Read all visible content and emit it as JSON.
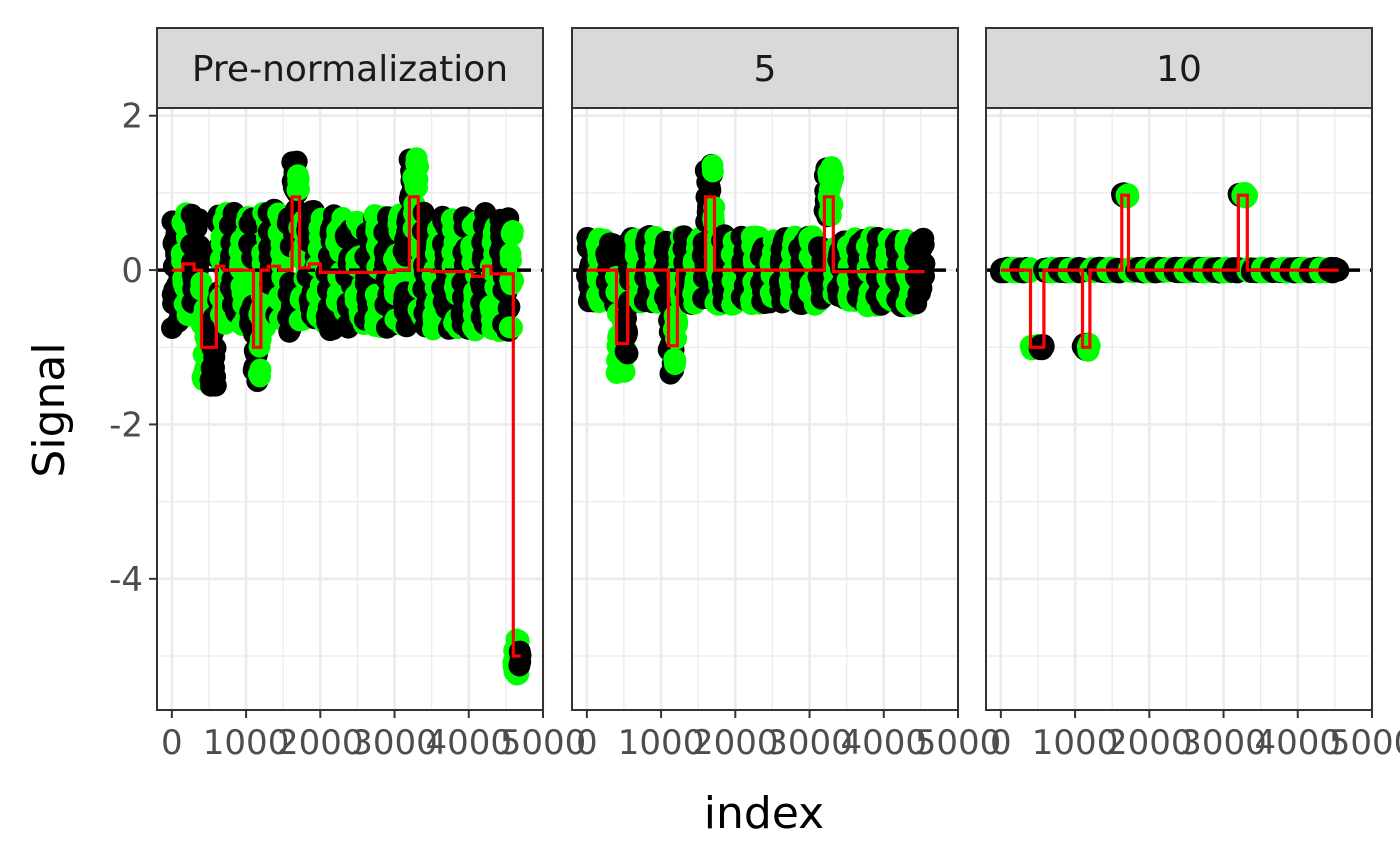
{
  "chart_data": {
    "type": "scatter",
    "title": "",
    "xlabel": "index",
    "ylabel": "Signal",
    "facet_order": [
      "Pre-normalization",
      "5",
      "10"
    ],
    "xlim": [
      -200,
      5000
    ],
    "ylim": [
      -5.7,
      2.1
    ],
    "x_ticks": [
      0,
      1000,
      2000,
      3000,
      4000,
      5000
    ],
    "x_tick_labels": [
      "0",
      "1000",
      "2000",
      "3000",
      "4000",
      "5000"
    ],
    "y_ticks": [
      -4,
      -2,
      0,
      2
    ],
    "y_tick_labels": [
      "-4",
      "-2",
      "0",
      "2"
    ],
    "reference_line": {
      "y": 0,
      "style": "dashed",
      "color": "#000000"
    },
    "point_colors": [
      "#000000",
      "#00ff00"
    ],
    "segment_color": "#ff0000",
    "grid": true,
    "legend": "none",
    "panels": [
      {
        "label": "Pre-normalization",
        "x_max": 4700,
        "segments": [
          {
            "start": 0,
            "end": 150,
            "value": 0.0,
            "spread": 0.75
          },
          {
            "start": 150,
            "end": 300,
            "value": 0.08,
            "spread": 0.75
          },
          {
            "start": 300,
            "end": 400,
            "value": 0.0,
            "spread": 0.75
          },
          {
            "start": 400,
            "end": 600,
            "value": -1.0,
            "spread": 0.5
          },
          {
            "start": 600,
            "end": 700,
            "value": 0.05,
            "spread": 0.7
          },
          {
            "start": 700,
            "end": 1100,
            "value": 0.0,
            "spread": 0.75
          },
          {
            "start": 1100,
            "end": 1200,
            "value": -1.0,
            "spread": 0.5
          },
          {
            "start": 1200,
            "end": 1300,
            "value": 0.0,
            "spread": 0.75
          },
          {
            "start": 1300,
            "end": 1450,
            "value": 0.05,
            "spread": 0.75
          },
          {
            "start": 1450,
            "end": 1620,
            "value": 0.0,
            "spread": 0.8
          },
          {
            "start": 1620,
            "end": 1720,
            "value": 0.95,
            "spread": 0.5
          },
          {
            "start": 1720,
            "end": 1850,
            "value": 0.03,
            "spread": 0.75
          },
          {
            "start": 1850,
            "end": 2000,
            "value": 0.08,
            "spread": 0.75
          },
          {
            "start": 2000,
            "end": 3000,
            "value": -0.03,
            "spread": 0.75
          },
          {
            "start": 3000,
            "end": 3200,
            "value": 0.0,
            "spread": 0.75
          },
          {
            "start": 3200,
            "end": 3320,
            "value": 0.95,
            "spread": 0.5
          },
          {
            "start": 3320,
            "end": 3500,
            "value": 0.0,
            "spread": 0.75
          },
          {
            "start": 3500,
            "end": 4050,
            "value": -0.02,
            "spread": 0.75
          },
          {
            "start": 4050,
            "end": 4200,
            "value": -0.08,
            "spread": 0.75
          },
          {
            "start": 4200,
            "end": 4300,
            "value": 0.05,
            "spread": 0.75
          },
          {
            "start": 4300,
            "end": 4600,
            "value": -0.05,
            "spread": 0.75
          },
          {
            "start": 4600,
            "end": 4700,
            "value": -5.0,
            "spread": 0.25
          }
        ]
      },
      {
        "label": "5",
        "x_max": 4550,
        "segments": [
          {
            "start": 0,
            "end": 400,
            "value": 0.0,
            "spread": 0.45
          },
          {
            "start": 400,
            "end": 550,
            "value": -0.95,
            "spread": 0.4
          },
          {
            "start": 550,
            "end": 1100,
            "value": 0.0,
            "spread": 0.45
          },
          {
            "start": 1100,
            "end": 1220,
            "value": -0.98,
            "spread": 0.4
          },
          {
            "start": 1220,
            "end": 1600,
            "value": 0.0,
            "spread": 0.45
          },
          {
            "start": 1600,
            "end": 1720,
            "value": 0.95,
            "spread": 0.45
          },
          {
            "start": 1720,
            "end": 3200,
            "value": 0.0,
            "spread": 0.45
          },
          {
            "start": 3200,
            "end": 3320,
            "value": 0.95,
            "spread": 0.4
          },
          {
            "start": 3320,
            "end": 4550,
            "value": -0.02,
            "spread": 0.45
          }
        ]
      },
      {
        "label": "10",
        "x_max": 4550,
        "segments": [
          {
            "start": 0,
            "end": 400,
            "value": 0.0,
            "spread": 0.03
          },
          {
            "start": 400,
            "end": 580,
            "value": -1.0,
            "spread": 0.03
          },
          {
            "start": 580,
            "end": 1100,
            "value": 0.0,
            "spread": 0.03
          },
          {
            "start": 1100,
            "end": 1200,
            "value": -1.0,
            "spread": 0.05
          },
          {
            "start": 1200,
            "end": 1630,
            "value": 0.0,
            "spread": 0.03
          },
          {
            "start": 1630,
            "end": 1720,
            "value": 0.97,
            "spread": 0.03
          },
          {
            "start": 1720,
            "end": 3200,
            "value": 0.0,
            "spread": 0.03
          },
          {
            "start": 3200,
            "end": 3320,
            "value": 0.97,
            "spread": 0.03
          },
          {
            "start": 3320,
            "end": 4550,
            "value": 0.0,
            "spread": 0.03
          }
        ]
      }
    ]
  }
}
